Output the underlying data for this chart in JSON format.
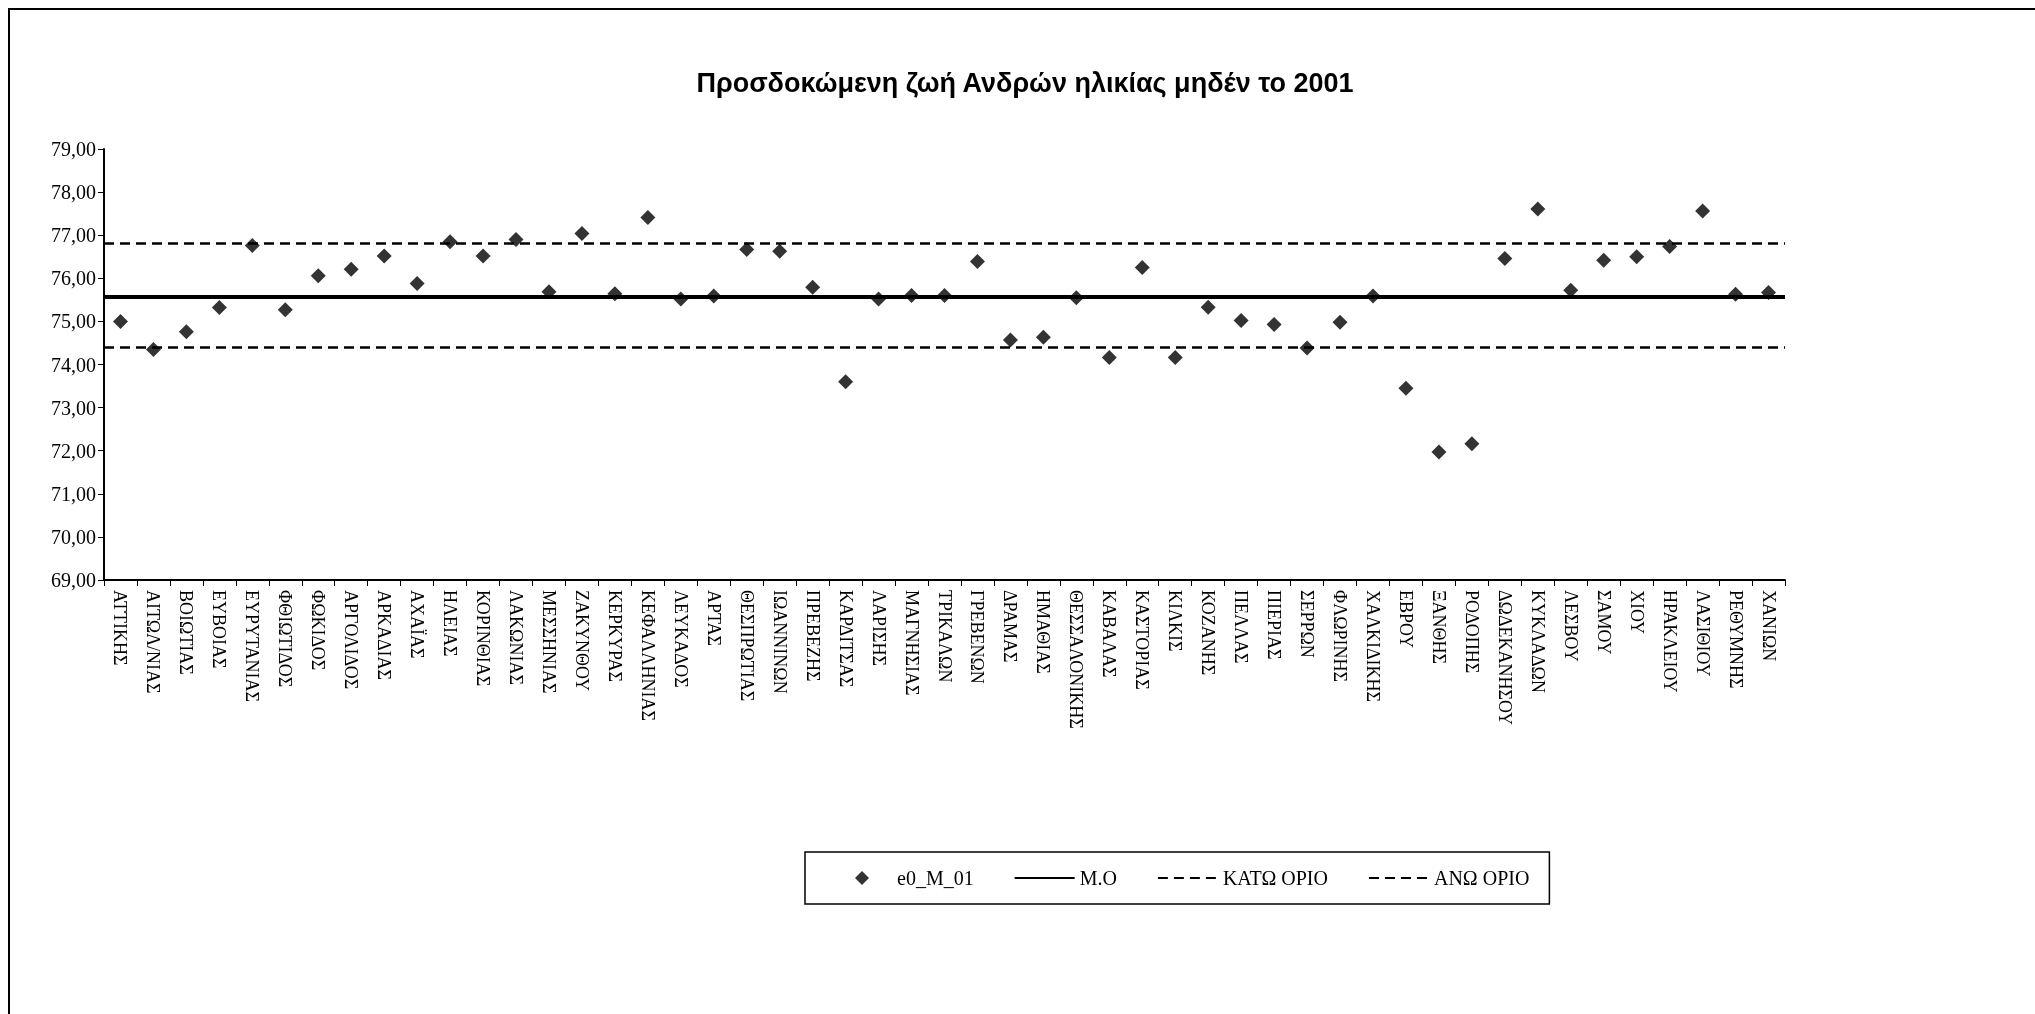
{
  "chart_data": {
    "type": "scatter",
    "title": "Προσδοκώμενη ζωή Ανδρών ηλικίας μηδέν το 2001",
    "categories": [
      "ΑΤΤΙΚΗΣ",
      "ΑΙΤΩΛ/ΝΙΑΣ",
      "ΒΟΙΩΤΙΑΣ",
      "ΕΥΒΟΙΑΣ",
      "ΕΥΡΥΤΑΝΙΑΣ",
      "ΦΘΙΩΤΙΔΟΣ",
      "ΦΩΚΙΔΟΣ",
      "ΑΡΓΟΛΙΔΟΣ",
      "ΑΡΚΑΔΙΑΣ",
      "ΑΧΑΪΑΣ",
      "ΗΛΕΙΑΣ",
      "ΚΟΡΙΝΘΙΑΣ",
      "ΛΑΚΩΝΙΑΣ",
      "ΜΕΣΣΗΝΙΑΣ",
      "ΖΑΚΥΝΘΟΥ",
      "ΚΕΡΚΥΡΑΣ",
      "ΚΕΦΑΛΛΗΝΙΑΣ",
      "ΛΕΥΚΑΔΟΣ",
      "ΑΡΤΑΣ",
      "ΘΕΣΠΡΩΤΙΑΣ",
      "ΙΩΑΝΝΙΝΩΝ",
      "ΠΡΕΒΕΖΗΣ",
      "ΚΑΡΔΙΤΣΑΣ",
      "ΛΑΡΙΣΗΣ",
      "ΜΑΓΝΗΣΙΑΣ",
      "ΤΡΙΚΑΛΩΝ",
      "ΓΡΕΒΕΝΩΝ",
      "ΔΡΑΜΑΣ",
      "ΗΜΑΘΙΑΣ",
      "ΘΕΣΣΑΛΟΝΙΚΗΣ",
      "ΚΑΒΑΛΑΣ",
      "ΚΑΣΤΟΡΙΑΣ",
      "ΚΙΛΚΙΣ",
      "ΚΟΖΑΝΗΣ",
      "ΠΕΛΛΑΣ",
      "ΠΙΕΡΙΑΣ",
      "ΣΕΡΡΩΝ",
      "ΦΛΩΡΙΝΗΣ",
      "ΧΑΛΚΙΔΙΚΗΣ",
      "ΕΒΡΟΥ",
      "ΞΑΝΘΗΣ",
      "ΡΟΔΟΠΗΣ",
      "ΔΩΔΕΚΑΝΗΣΟΥ",
      "ΚΥΚΛΑΔΩΝ",
      "ΛΕΣΒΟΥ",
      "ΣΑΜΟΥ",
      "ΧΙΟΥ",
      "ΗΡΑΚΛΕΙΟΥ",
      "ΛΑΣΙΘΙΟΥ",
      "ΡΕΘΥΜΝΗΣ",
      "ΧΑΝΙΩΝ"
    ],
    "series": [
      {
        "name": "e0_M_01",
        "color": "#000000",
        "values": [
          75.0,
          74.35,
          74.76,
          75.32,
          76.76,
          75.27,
          76.06,
          76.21,
          76.52,
          75.88,
          76.85,
          76.52,
          76.9,
          75.69,
          77.04,
          75.64,
          77.41,
          75.52,
          75.59,
          76.67,
          76.63,
          75.79,
          73.6,
          75.52,
          75.6,
          75.6,
          76.39,
          74.57,
          74.63,
          75.55,
          74.16,
          76.25,
          74.16,
          75.33,
          75.02,
          74.93,
          74.38,
          74.98,
          75.59,
          73.45,
          71.97,
          72.16,
          76.46,
          77.61,
          75.72,
          76.42,
          76.5,
          76.74,
          77.56,
          75.63,
          75.67
        ]
      }
    ],
    "ref_lines": [
      {
        "axis": "y",
        "value": 75.57,
        "label": "Μ.Ο",
        "color": "#000000",
        "line_style": "solid"
      },
      {
        "axis": "y",
        "value": 74.4,
        "label": "ΚΑΤΩ ΟΡΙΟ",
        "color": "#000000",
        "line_style": "dashed"
      },
      {
        "axis": "y",
        "value": 76.81,
        "label": "ΑΝΩ ΟΡΙΟ",
        "color": "#000000",
        "line_style": "dashed"
      }
    ],
    "ylim": [
      69,
      79
    ],
    "yticks": [
      {
        "value": 69,
        "label": "69,00"
      },
      {
        "value": 70,
        "label": "70,00"
      },
      {
        "value": 71,
        "label": "71,00"
      },
      {
        "value": 72,
        "label": "72,00"
      },
      {
        "value": 73,
        "label": "73,00"
      },
      {
        "value": 74,
        "label": "74,00"
      },
      {
        "value": 75,
        "label": "75,00"
      },
      {
        "value": 76,
        "label": "76,00"
      },
      {
        "value": 77,
        "label": "77,00"
      },
      {
        "value": 78,
        "label": "78,00"
      },
      {
        "value": 79,
        "label": "79,00"
      }
    ],
    "marker": "diamond",
    "grid": false,
    "legend": "bottom"
  }
}
